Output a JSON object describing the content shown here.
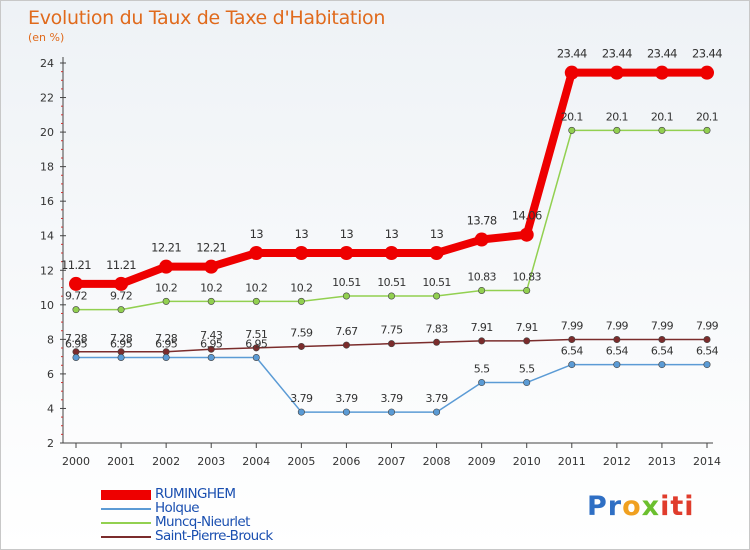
{
  "chart_data": {
    "type": "line",
    "title": "Evolution du Taux de Taxe d'Habitation",
    "ylabel": "(en %)",
    "x": [
      "2000",
      "2001",
      "2002",
      "2003",
      "2004",
      "2005",
      "2006",
      "2007",
      "2008",
      "2009",
      "2010",
      "2011",
      "2012",
      "2013",
      "2014"
    ],
    "ylim": [
      2,
      24
    ],
    "yticks": [
      "2",
      "4",
      "6",
      "8",
      "10",
      "12",
      "14",
      "16",
      "18",
      "20",
      "22",
      "24"
    ],
    "grid": false,
    "legend_position": "bottom-left",
    "series": [
      {
        "name": "RUMINGHEM",
        "color": "#ee0000",
        "values": [
          11.21,
          11.21,
          12.21,
          12.21,
          13,
          13,
          13,
          13,
          13,
          13.78,
          14.06,
          23.44,
          23.44,
          23.44,
          23.44
        ],
        "labels": [
          "11.21",
          "11.21",
          "12.21",
          "12.21",
          "13",
          "13",
          "13",
          "13",
          "13",
          "13.78",
          "14.06",
          "23.44",
          "23.44",
          "23.44",
          "23.44"
        ]
      },
      {
        "name": "Holque",
        "color": "#5b9bd5",
        "values": [
          6.95,
          6.95,
          6.95,
          6.95,
          6.95,
          3.79,
          3.79,
          3.79,
          3.79,
          5.5,
          5.5,
          6.54,
          6.54,
          6.54,
          6.54
        ],
        "labels": [
          "6.95",
          "6.95",
          "6.95",
          "6.95",
          "6.95",
          "3.79",
          "3.79",
          "3.79",
          "3.79",
          "5.5",
          "5.5",
          "6.54",
          "6.54",
          "6.54",
          "6.54"
        ]
      },
      {
        "name": "Muncq-Nieurlet",
        "color": "#92d050",
        "values": [
          9.72,
          9.72,
          10.2,
          10.2,
          10.2,
          10.2,
          10.51,
          10.51,
          10.51,
          10.83,
          10.83,
          20.1,
          20.1,
          20.1,
          20.1
        ],
        "labels": [
          "9.72",
          "9.72",
          "10.2",
          "10.2",
          "10.2",
          "10.2",
          "10.51",
          "10.51",
          "10.51",
          "10.83",
          "10.83",
          "20.1",
          "20.1",
          "20.1",
          "20.1"
        ]
      },
      {
        "name": "Saint-Pierre-Brouck",
        "color": "#7b2c2c",
        "values": [
          7.28,
          7.28,
          7.28,
          7.43,
          7.51,
          7.59,
          7.67,
          7.75,
          7.83,
          7.91,
          7.91,
          7.99,
          7.99,
          7.99,
          7.99
        ],
        "labels": [
          "7.28",
          "7.28",
          "7.28",
          "7.43",
          "7.51",
          "7.59",
          "7.67",
          "7.75",
          "7.83",
          "7.91",
          "7.91",
          "7.99",
          "7.99",
          "7.99",
          "7.99"
        ]
      }
    ]
  },
  "logo": {
    "p": "Pr",
    "o": "o",
    "x": "x",
    "i": "iti"
  }
}
